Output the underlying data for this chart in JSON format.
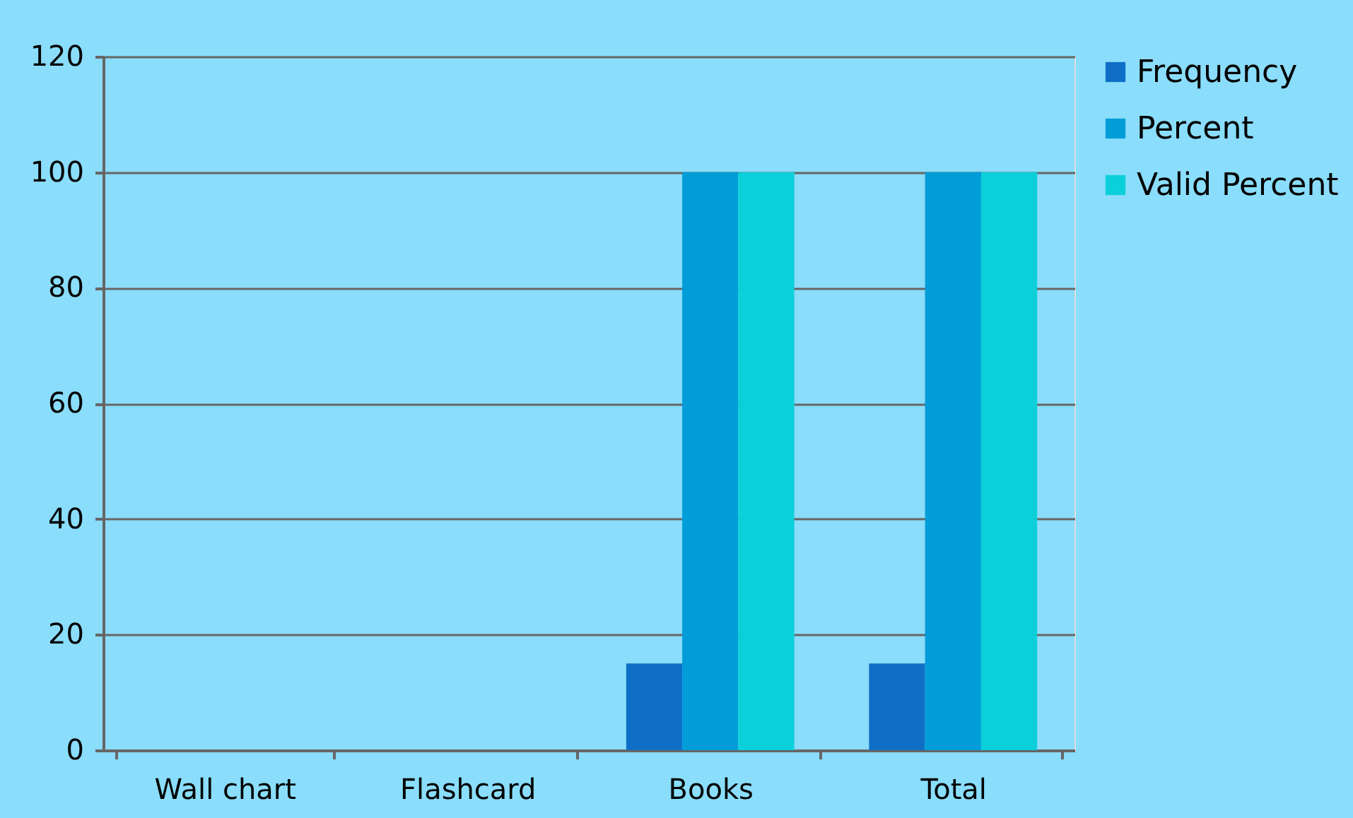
{
  "chart_data": {
    "type": "bar",
    "categories": [
      "Wall chart",
      "Flashcard",
      "Books",
      "Total"
    ],
    "series": [
      {
        "name": "Frequency",
        "color": "#0f6fc6",
        "values": [
          0,
          0,
          15,
          15
        ]
      },
      {
        "name": "Percent",
        "color": "#009dd9",
        "values": [
          0,
          0,
          100,
          100
        ]
      },
      {
        "name": "Valid Percent",
        "color": "#0bd0d9",
        "values": [
          0,
          0,
          100,
          100
        ]
      }
    ],
    "ylim": [
      0,
      120
    ],
    "yticks": [
      0,
      20,
      40,
      60,
      80,
      100,
      120
    ],
    "grid": "y",
    "legend": "right"
  }
}
